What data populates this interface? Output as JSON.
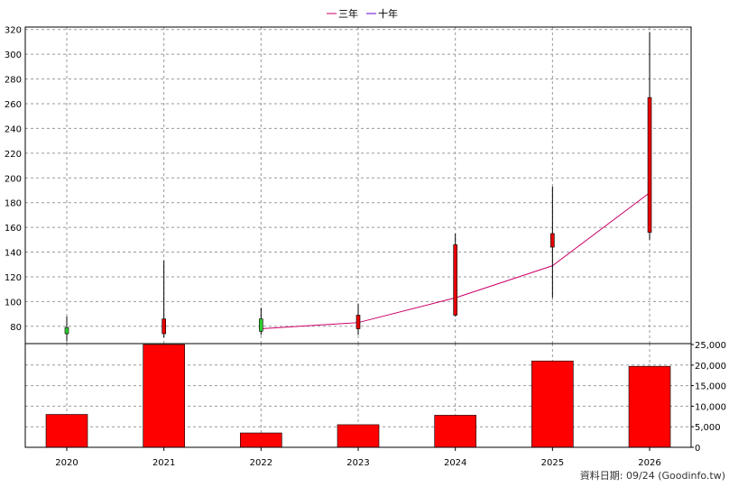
{
  "legend": [
    {
      "name": "三年",
      "color": "#cc0066"
    },
    {
      "name": "十年",
      "color": "#6600cc"
    }
  ],
  "footer": "資料日期: 09/24  (Goodinfo.tw)",
  "colors": {
    "up_candle": "#e60000",
    "down_candle": "#2ecc2e",
    "volume_bar": "#ff0000",
    "grid": "#999999",
    "three_year_line": "#cc0066"
  },
  "chart_data": [
    {
      "type": "candlestick",
      "title": "",
      "categories": [
        "2020",
        "2021",
        "2022",
        "2023",
        "2024",
        "2025",
        "2026"
      ],
      "ylim": [
        66,
        322
      ],
      "yticks": [
        80,
        100,
        120,
        140,
        160,
        180,
        200,
        220,
        240,
        260,
        280,
        300,
        320
      ],
      "ohlc": [
        {
          "x": "2020",
          "open": 79,
          "high": 88,
          "low": 68,
          "close": 74
        },
        {
          "x": "2021",
          "open": 74,
          "high": 133,
          "low": 71,
          "close": 86
        },
        {
          "x": "2022",
          "open": 86,
          "high": 95,
          "low": 73,
          "close": 76
        },
        {
          "x": "2023",
          "open": 78,
          "high": 98,
          "low": 73,
          "close": 89
        },
        {
          "x": "2024",
          "open": 89,
          "high": 155,
          "low": 88,
          "close": 146
        },
        {
          "x": "2025",
          "open": 144,
          "high": 193,
          "low": 103,
          "close": 155
        },
        {
          "x": "2026",
          "open": 156,
          "high": 318,
          "low": 150,
          "close": 265
        }
      ],
      "series": [
        {
          "name": "三年",
          "x": [
            "2022",
            "2023",
            "2024",
            "2025",
            "2026"
          ],
          "values": [
            78,
            83,
            103,
            129,
            188
          ]
        }
      ]
    },
    {
      "type": "bar",
      "title": "",
      "categories": [
        "2020",
        "2021",
        "2022",
        "2023",
        "2024",
        "2025",
        "2026"
      ],
      "values": [
        8000,
        26000,
        3500,
        5500,
        7800,
        21000,
        19700
      ],
      "ylim": [
        0,
        25000
      ],
      "yticks": [
        "0",
        "5,000",
        "10,000",
        "15,000",
        "20,000",
        "25,000"
      ],
      "ytick_values": [
        0,
        5000,
        10000,
        15000,
        20000,
        25000
      ]
    }
  ]
}
